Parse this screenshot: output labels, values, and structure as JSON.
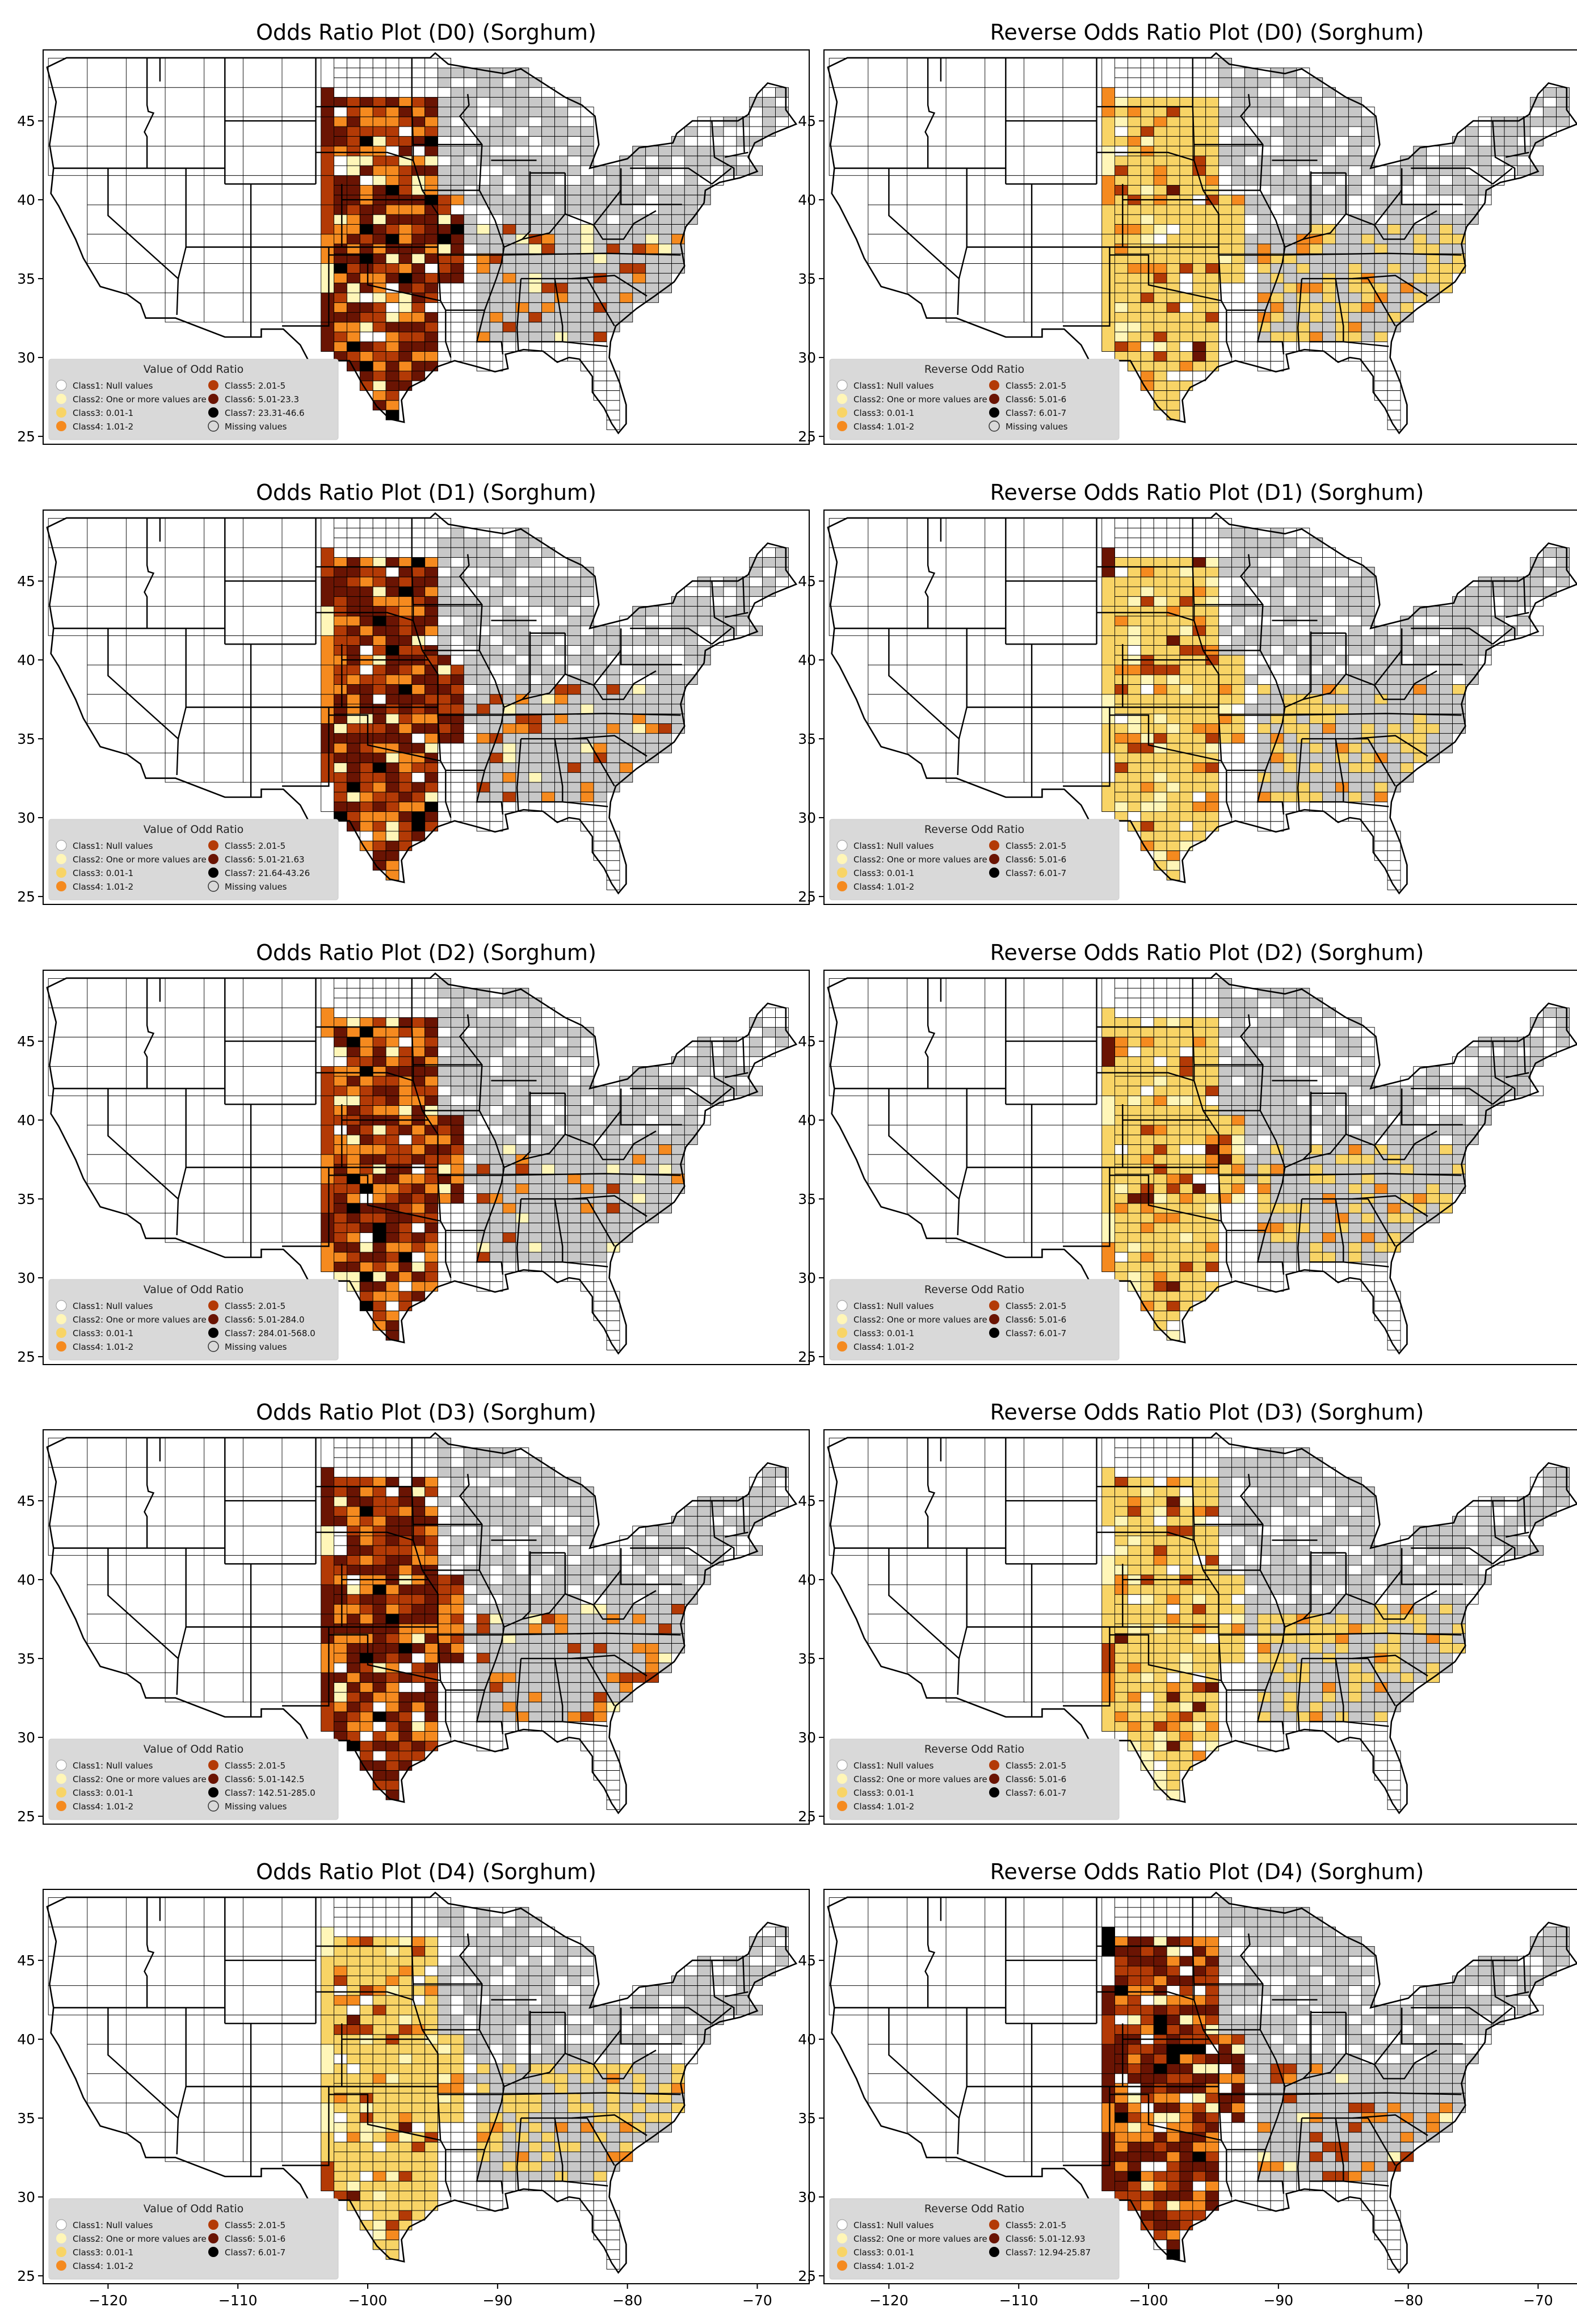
{
  "colors": {
    "class1": "#ffffff",
    "class2": "#fff6b8",
    "class3": "#f8d466",
    "class4": "#f58a1f",
    "class5": "#b33a06",
    "class6": "#6a1403",
    "class7": "#000000",
    "missing": "#c8c8c8",
    "legend_bg": "#d9d9d9",
    "border": "#000000"
  },
  "axes": {
    "xlim": [
      -125,
      -66
    ],
    "ylim": [
      24.5,
      49.5
    ],
    "x_ticks": [
      -120,
      -110,
      -100,
      -90,
      -80,
      -70
    ],
    "y_ticks": [
      25,
      30,
      35,
      40,
      45
    ],
    "x_tick_labels": [
      "−120",
      "−110",
      "−100",
      "−90",
      "−80",
      "−70"
    ],
    "y_tick_labels": [
      "25",
      "30",
      "35",
      "40",
      "45"
    ]
  },
  "panels": [
    {
      "title": "Odds Ratio Plot (D0) (Sorghum)",
      "legend_title": "Value of Odd Ratio",
      "legend_left": [
        "Class1: Null values",
        "Class2: One or more values are 0",
        "Class3: 0.01-1",
        "Class4: 1.01-2"
      ],
      "legend_right": [
        "Class5: 2.01-5",
        "Class6: 5.01-23.3",
        "Class7: 23.31-46.6",
        "Missing values"
      ],
      "legend_right_keys": [
        "class5",
        "class6",
        "class7",
        "missing"
      ],
      "pattern": "high"
    },
    {
      "title": "Reverse Odds Ratio Plot (D0) (Sorghum)",
      "legend_title": "Reverse Odd Ratio",
      "legend_left": [
        "Class1: Null values",
        "Class2: One or more values are 0",
        "Class3: 0.01-1",
        "Class4: 1.01-2"
      ],
      "legend_right": [
        "Class5: 2.01-5",
        "Class6: 5.01-6",
        "Class7: 6.01-7",
        "Missing values"
      ],
      "legend_right_keys": [
        "class5",
        "class6",
        "class7",
        "missing"
      ],
      "pattern": "low"
    },
    {
      "title": "Odds Ratio Plot (D1) (Sorghum)",
      "legend_title": "Value of Odd Ratio",
      "legend_left": [
        "Class1: Null values",
        "Class2: One or more values are 0",
        "Class3: 0.01-1",
        "Class4: 1.01-2"
      ],
      "legend_right": [
        "Class5: 2.01-5",
        "Class6: 5.01-21.63",
        "Class7: 21.64-43.26",
        "Missing values"
      ],
      "legend_right_keys": [
        "class5",
        "class6",
        "class7",
        "missing"
      ],
      "pattern": "high"
    },
    {
      "title": "Reverse Odds Ratio Plot (D1) (Sorghum)",
      "legend_title": "Reverse Odd Ratio",
      "legend_left": [
        "Class1: Null values",
        "Class2: One or more values are 0",
        "Class3: 0.01-1",
        "Class4: 1.01-2"
      ],
      "legend_right": [
        "Class5: 2.01-5",
        "Class6: 5.01-6",
        "Class7: 6.01-7"
      ],
      "legend_right_keys": [
        "class5",
        "class6",
        "class7"
      ],
      "pattern": "low"
    },
    {
      "title": "Odds Ratio Plot (D2) (Sorghum)",
      "legend_title": "Value of Odd Ratio",
      "legend_left": [
        "Class1: Null values",
        "Class2: One or more values are 0",
        "Class3: 0.01-1",
        "Class4: 1.01-2"
      ],
      "legend_right": [
        "Class5: 2.01-5",
        "Class6: 5.01-284.0",
        "Class7: 284.01-568.0",
        "Missing values"
      ],
      "legend_right_keys": [
        "class5",
        "class6",
        "class7",
        "missing"
      ],
      "pattern": "high"
    },
    {
      "title": "Reverse Odds Ratio Plot (D2) (Sorghum)",
      "legend_title": "Reverse Odd Ratio",
      "legend_left": [
        "Class1: Null values",
        "Class2: One or more values are 0",
        "Class3: 0.01-1",
        "Class4: 1.01-2"
      ],
      "legend_right": [
        "Class5: 2.01-5",
        "Class6: 5.01-6",
        "Class7: 6.01-7"
      ],
      "legend_right_keys": [
        "class5",
        "class6",
        "class7"
      ],
      "pattern": "low"
    },
    {
      "title": "Odds Ratio Plot (D3) (Sorghum)",
      "legend_title": "Value of Odd Ratio",
      "legend_left": [
        "Class1: Null values",
        "Class2: One or more values are 0",
        "Class3: 0.01-1",
        "Class4: 1.01-2"
      ],
      "legend_right": [
        "Class5: 2.01-5",
        "Class6: 5.01-142.5",
        "Class7: 142.51-285.0",
        "Missing values"
      ],
      "legend_right_keys": [
        "class5",
        "class6",
        "class7",
        "missing"
      ],
      "pattern": "high"
    },
    {
      "title": "Reverse Odds Ratio Plot (D3) (Sorghum)",
      "legend_title": "Reverse Odd Ratio",
      "legend_left": [
        "Class1: Null values",
        "Class2: One or more values are 0",
        "Class3: 0.01-1",
        "Class4: 1.01-2"
      ],
      "legend_right": [
        "Class5: 2.01-5",
        "Class6: 5.01-6",
        "Class7: 6.01-7"
      ],
      "legend_right_keys": [
        "class5",
        "class6",
        "class7"
      ],
      "pattern": "low"
    },
    {
      "title": "Odds Ratio Plot (D4) (Sorghum)",
      "legend_title": "Value of Odd Ratio",
      "legend_left": [
        "Class1: Null values",
        "Class2: One or more values are 0",
        "Class3: 0.01-1",
        "Class4: 1.01-2"
      ],
      "legend_right": [
        "Class5: 2.01-5",
        "Class6: 5.01-6",
        "Class7: 6.01-7"
      ],
      "legend_right_keys": [
        "class5",
        "class6",
        "class7"
      ],
      "pattern": "low"
    },
    {
      "title": "Reverse Odds Ratio Plot (D4) (Sorghum)",
      "legend_title": "Reverse Odd Ratio",
      "legend_left": [
        "Class1: Null values",
        "Class2: One or more values are 0",
        "Class3: 0.01-1",
        "Class4: 1.01-2"
      ],
      "legend_right": [
        "Class5: 2.01-5",
        "Class6: 5.01-12.93",
        "Class7: 12.94-25.87"
      ],
      "legend_right_keys": [
        "class5",
        "class6",
        "class7"
      ],
      "pattern": "high"
    }
  ]
}
